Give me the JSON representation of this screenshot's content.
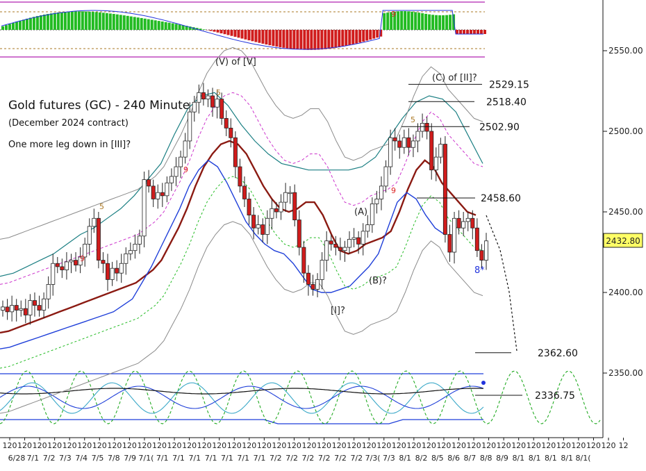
{
  "chart_data": {
    "type": "candlestick",
    "title": "Gold futures (GC) - 240 Minute",
    "subtitle": "(December 2024 contract)",
    "note": "One more leg down in [III]?",
    "ylim": [
      2312,
      2560
    ],
    "y_ticks": [
      "2550.00",
      "2500.00",
      "2450.00",
      "2400.00",
      "2350.00"
    ],
    "y_tick_values": [
      2550,
      2500,
      2450,
      2400,
      2350
    ],
    "last_price": "2432.80",
    "x_top_labels": [
      "120",
      "120",
      "120",
      "120",
      "120",
      "120",
      "120",
      "120",
      "120",
      "120",
      "120",
      "120",
      "120",
      "120",
      "120",
      "120",
      "120",
      "120",
      "120",
      "120",
      "120",
      "120",
      "120",
      "120",
      "120",
      "120",
      "120",
      "120",
      "120",
      "120",
      "120",
      "120",
      "120",
      "120",
      "120",
      "120",
      "120",
      "120",
      "120",
      "120",
      "120",
      "12"
    ],
    "x_dates": [
      "6/28",
      "7/1",
      "7/2",
      "7/3",
      "7/4",
      "7/5",
      "7/8",
      "7/9",
      "7/10",
      "7/11",
      "7/12",
      "7/15",
      "7/16",
      "7/17",
      "7/18",
      "7/19",
      "7/22",
      "7/23",
      "7/24",
      "7/25",
      "7/26",
      "7/29",
      "7/30",
      "7/31",
      "8/1",
      "8/2",
      "8/5",
      "8/6",
      "8/7",
      "8/8",
      "8/9",
      "8/12",
      "8/13",
      "8/14",
      "8/15",
      "8/16",
      "8/18"
    ],
    "x_date_labels": [
      "6/28",
      "7/1",
      "7/2",
      "7/3",
      "7/4",
      "7/5",
      "7/8",
      "7/9",
      "7/1(",
      "7/1",
      "7/1",
      "7/1",
      "7/1",
      "7/1",
      "7/1",
      "7/1",
      "7/2",
      "7/2",
      "7/2",
      "7/2",
      "7/2",
      "7/2",
      "7/3(",
      "7/3",
      "8/1",
      "8/2",
      "8/5",
      "8/6",
      "8/7",
      "8/8",
      "8/9",
      "8/1",
      "8/1",
      "8/1",
      "8/1",
      "8/1("
    ],
    "price_series": {
      "name": "GC 240 Minute",
      "close": [
        2391,
        2388,
        2392,
        2389,
        2390,
        2386,
        2395,
        2392,
        2389,
        2396,
        2405,
        2418,
        2416,
        2414,
        2419,
        2420,
        2417,
        2422,
        2430,
        2441,
        2446,
        2420,
        2418,
        2408,
        2415,
        2412,
        2418,
        2424,
        2426,
        2430,
        2435,
        2470,
        2466,
        2458,
        2462,
        2460,
        2468,
        2472,
        2478,
        2484,
        2494,
        2512,
        2518,
        2524,
        2520,
        2522,
        2515,
        2520,
        2508,
        2502,
        2496,
        2478,
        2466,
        2458,
        2448,
        2440,
        2442,
        2436,
        2446,
        2452,
        2450,
        2456,
        2462,
        2462,
        2445,
        2428,
        2412,
        2405,
        2402,
        2408,
        2420,
        2432,
        2430,
        2428,
        2426,
        2428,
        2433,
        2434,
        2430,
        2438,
        2442,
        2455,
        2458,
        2466,
        2478,
        2496,
        2494,
        2490,
        2496,
        2490,
        2494,
        2500,
        2505,
        2500,
        2476,
        2484,
        2492,
        2436,
        2425,
        2446,
        2440,
        2444,
        2446,
        2440,
        2426,
        2420,
        2432
      ]
    },
    "bands": {
      "red_average": [
        2375,
        2376,
        2378,
        2380,
        2382,
        2384,
        2386,
        2388,
        2390,
        2392,
        2394,
        2396,
        2398,
        2400,
        2402,
        2404,
        2406,
        2410,
        2414,
        2420,
        2430,
        2440,
        2452,
        2466,
        2478,
        2486,
        2492,
        2494,
        2492,
        2486,
        2476,
        2466,
        2458,
        2452,
        2450,
        2452,
        2456,
        2456,
        2448,
        2436,
        2426,
        2424,
        2426,
        2430,
        2432,
        2434,
        2438,
        2450,
        2464,
        2476,
        2482,
        2478,
        2468,
        2462,
        2456,
        2450,
        2448
      ],
      "blue_lower": [
        2365,
        2366,
        2368,
        2370,
        2372,
        2374,
        2376,
        2378,
        2380,
        2382,
        2384,
        2386,
        2388,
        2392,
        2396,
        2406,
        2416,
        2428,
        2440,
        2452,
        2466,
        2476,
        2482,
        2478,
        2468,
        2456,
        2444,
        2436,
        2430,
        2426,
        2424,
        2418,
        2410,
        2402,
        2400,
        2400,
        2402,
        2404,
        2410,
        2416,
        2424,
        2440,
        2456,
        2462,
        2458,
        2448,
        2440,
        2436
      ],
      "teal_upper": [
        2410,
        2412,
        2416,
        2420,
        2424,
        2430,
        2436,
        2440,
        2446,
        2452,
        2460,
        2470,
        2480,
        2498,
        2514,
        2522,
        2524,
        2516,
        2504,
        2494,
        2486,
        2480,
        2478,
        2476,
        2476,
        2476,
        2476,
        2478,
        2484,
        2496,
        2508,
        2518,
        2522,
        2520,
        2512,
        2496,
        2480
      ]
    },
    "elliott_labels": [
      "(V) of [V]",
      "(C) of [II]?",
      "(A)",
      "(B)?",
      "[I]?",
      "8*"
    ],
    "count_labels": [
      "5",
      "9",
      "9",
      "5",
      "9",
      "5",
      "9"
    ],
    "levels": [
      {
        "label": "2529.15",
        "value": 2529.15
      },
      {
        "label": "2518.40",
        "value": 2518.4
      },
      {
        "label": "2502.90",
        "value": 2502.9
      },
      {
        "label": "2458.60",
        "value": 2458.6
      },
      {
        "label": "2362.60",
        "value": 2362.6
      },
      {
        "label": "2336.75",
        "value": 2336.75
      }
    ],
    "grid": false,
    "colors": {
      "up": "#ffffff",
      "down": "#d01c1c",
      "average": "#8b1a12",
      "lower_band": "#1f3fd9",
      "upper_band": "#1b7f83",
      "magenta_dash": "#cc33cc",
      "green_dash": "#22bb22",
      "grey_band": "#8a8a8a",
      "histogram_up": "#22bb22",
      "histogram_down": "#d01c1c",
      "price_label_bg": "#ffff66"
    }
  }
}
